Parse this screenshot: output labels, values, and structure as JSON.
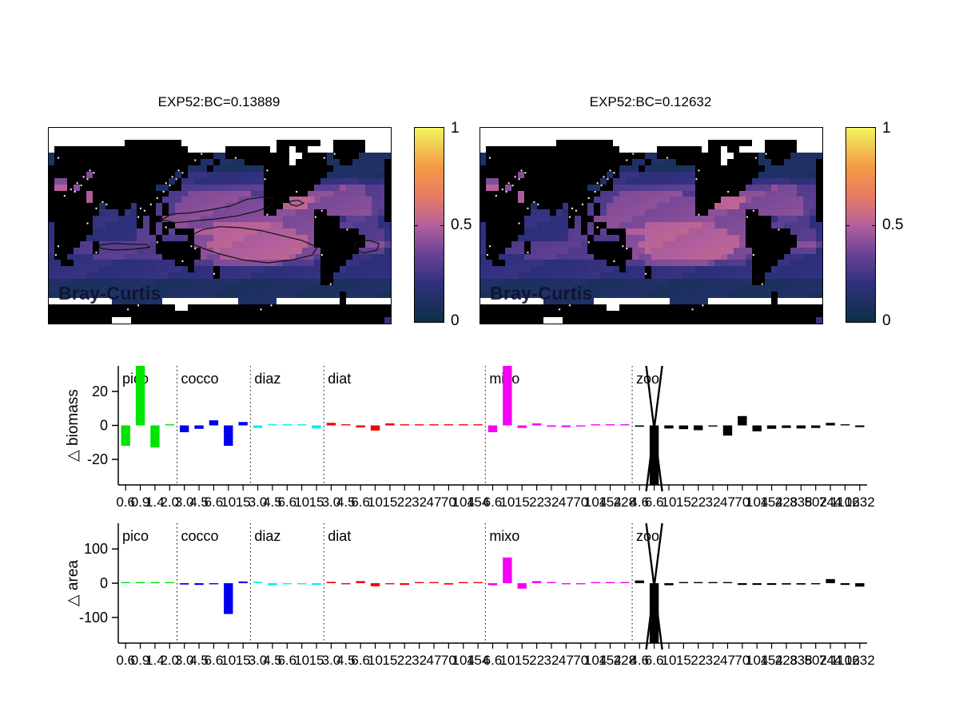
{
  "maps": {
    "left": {
      "title": "EXP52:BC=0.13889",
      "corner_label": "Bray-Curtis",
      "has_contours": true
    },
    "right": {
      "title": "EXP52:BC=0.12632",
      "corner_label": "Bray-Curtis",
      "has_contours": false
    }
  },
  "colorbar": {
    "ticks": [
      "1",
      "0.5",
      "0"
    ],
    "range": [
      0,
      1
    ]
  },
  "colormap_stops": [
    [
      0.0,
      "#0b3145"
    ],
    [
      0.2,
      "#30307e"
    ],
    [
      0.35,
      "#6a4396"
    ],
    [
      0.5,
      "#b5609c"
    ],
    [
      0.65,
      "#e77d63"
    ],
    [
      0.8,
      "#f39a45"
    ],
    [
      1.0,
      "#f2f55f"
    ]
  ],
  "map_grid": {
    "legend": {
      "B": "land(black)",
      "W": "ice/no-data(white)",
      "1-5": "bray-curtis value x10"
    },
    "rows": [
      "WWWWWWWWWWWWWWWWWWWWWWWWWWWWWWWWWWWWWWWWWWWWWWWWWWWWWW",
      "WWWWWWWWWWWWWWWWWWWWWWWWWWWWWWWWWWWWWWWWWWWWWWWWWWWWWW",
      "WWWWWWWWWWWWBBBBBBBBBWWWWWWWWWWWWWWWBBBBBBBWWBBBBBWWWW",
      "WBBBBBBBBBBBBBBBBBBBBBWWWWWWBBBBBBBWBBWBBWWWWBBBBBWWWW",
      "1BBBBBBBBBBBBBBBBBBBBBBBBB11BBBBBBBBBBWWBBBB1BBBB11111",
      "1BBBBBBBBBBBBBBBBBBBBBBB11B1111BBBBBBBWBBBBB11BB11111B",
      "BBBBBBBBBBBBBBBBBBBBBB111B11111111BBBBBBBBBBB11111111B",
      "BBBBBB4BBBBBBBBBBBBB1B222222222222BBBBBBBBBB111111111B",
      "B44BBBBBBBBBBBBBBBB1B2222222222222BBBBBBBBB2222222222B",
      "B55B4BBBBBBBBBBBB11BB3333333333333BBBBBBBB33334444333B",
      "BBBBBB5BBBBBBBBBBBB333444444444433BBBBBBB444444444333B",
      "BBBBBB5BBBBBBBBBBB3334444444444444BBBB555544444444433B",
      "BBBBBBBB1BBBB2BBB3B344444444444444BBB5555444444444433B",
      "BBBBBBBB222B22BBB3B344444444444444BB444444BB444444433B",
      "BBBBBBB2222222B3BB444444444444444444444444BBBB2333332B",
      "2BBBBBB2222222B3B3BB4444445555555555544444BBBB33333322",
      "2BBBBBB222222233B3B3BBB5555555555555555444BBBBBBB33332",
      "2BBBBB22222222333B3333B4445555555555555554BBBBBBBB3332",
      "2BBBB33B333333333BBBBBB4455555555555555554BBBBBBBB4443",
      "2BBB333B333333333BBBBBBB445555555555555544 4BBBBBB33332",
      "2BB222233333333333BBBBBB4445555555555554443BBBBB222222",
      "22BB2222222222222222BBB33344444444444333332BBBB2222222",
      "2222222222222222222222B222B2222222222222222BBB22222222",
      "22222222222222222222222222B2222222222222222BB222222222",
      "1111111111111111111111111111111111111111111BB111111111",
      "111111111111111111111111111111111111111111111111111111",
      "1111111111111111111111111111111111111111111111B1111111",
      "WWWWWWWWWW11111111WWWWWWWWWWWW111111WWWWWWWWWWBWWWWWWW",
      "BBBBBBBBBBBBBBBBBBBBWWBBBBBBBBBBBBBBBBBBBBBBBBBBBBBBBB",
      "BBBBBBBBBBBBBBBBBBBBBBBBBBBBBBBBBBBBBBBBBBBBBBBBBBBBBB",
      "BBBBBBBBBBWWWBBBBBBBBBBBBBBBBBBBBBBBBBBBBBBBBBBBBBBBB"
    ]
  },
  "contours": [
    [
      [
        0.33,
        0.47
      ],
      [
        0.36,
        0.44
      ],
      [
        0.41,
        0.435
      ],
      [
        0.47,
        0.42
      ],
      [
        0.53,
        0.4
      ],
      [
        0.58,
        0.365
      ],
      [
        0.62,
        0.355
      ],
      [
        0.655,
        0.36
      ],
      [
        0.65,
        0.4
      ],
      [
        0.61,
        0.425
      ],
      [
        0.55,
        0.45
      ],
      [
        0.49,
        0.465
      ],
      [
        0.43,
        0.475
      ],
      [
        0.37,
        0.485
      ],
      [
        0.33,
        0.47
      ]
    ],
    [
      [
        0.41,
        0.555
      ],
      [
        0.45,
        0.52
      ],
      [
        0.5,
        0.505
      ],
      [
        0.56,
        0.51
      ],
      [
        0.62,
        0.525
      ],
      [
        0.68,
        0.55
      ],
      [
        0.74,
        0.575
      ],
      [
        0.785,
        0.61
      ],
      [
        0.77,
        0.65
      ],
      [
        0.71,
        0.675
      ],
      [
        0.64,
        0.69
      ],
      [
        0.57,
        0.675
      ],
      [
        0.5,
        0.645
      ],
      [
        0.45,
        0.615
      ],
      [
        0.41,
        0.585
      ],
      [
        0.41,
        0.555
      ]
    ],
    [
      [
        0.145,
        0.6
      ],
      [
        0.19,
        0.59
      ],
      [
        0.24,
        0.595
      ],
      [
        0.285,
        0.595
      ],
      [
        0.295,
        0.61
      ],
      [
        0.25,
        0.62
      ],
      [
        0.19,
        0.625
      ],
      [
        0.15,
        0.615
      ],
      [
        0.145,
        0.6
      ]
    ],
    [
      [
        0.895,
        0.585
      ],
      [
        0.935,
        0.575
      ],
      [
        0.965,
        0.59
      ],
      [
        0.96,
        0.625
      ],
      [
        0.92,
        0.64
      ],
      [
        0.895,
        0.62
      ],
      [
        0.895,
        0.585
      ]
    ],
    [
      [
        0.705,
        0.375
      ],
      [
        0.73,
        0.37
      ],
      [
        0.745,
        0.385
      ],
      [
        0.725,
        0.4
      ],
      [
        0.705,
        0.39
      ],
      [
        0.705,
        0.375
      ]
    ]
  ],
  "chart_data": [
    {
      "type": "bar",
      "name": "delta-biomass",
      "ylabel": "△ biomass",
      "ylim": [
        -35,
        35
      ],
      "yticks": [
        -20,
        0,
        20
      ],
      "groups": [
        {
          "name": "pico",
          "color": "#00e400",
          "sizes": [
            "0.6",
            "0.9",
            "1.4",
            "2.0"
          ],
          "values": [
            -12,
            35,
            -13,
            0.5
          ]
        },
        {
          "name": "cocco",
          "color": "#0000f0",
          "sizes": [
            "3.0",
            "4.5",
            "6.6",
            "10",
            "15"
          ],
          "values": [
            -4,
            -2,
            3,
            -12,
            2
          ]
        },
        {
          "name": "diaz",
          "color": "#00eeee",
          "sizes": [
            "3.0",
            "4.5",
            "6.6",
            "10",
            "15"
          ],
          "values": [
            -1.5,
            0.3,
            0.3,
            0.3,
            -1.8
          ]
        },
        {
          "name": "diat",
          "color": "#f50000",
          "sizes": [
            "3.0",
            "4.5",
            "6.6",
            "10",
            "15",
            "22",
            "32",
            "47",
            "70",
            "104",
            "154"
          ],
          "values": [
            1.5,
            0.3,
            -1.2,
            -3,
            1.2,
            0.3,
            0.2,
            0.2,
            0.2,
            0.2,
            0.2
          ]
        },
        {
          "name": "mixo",
          "color": "#f500f5",
          "sizes": [
            "6.6",
            "10",
            "15",
            "22",
            "32",
            "47",
            "70",
            "104",
            "154",
            "228"
          ],
          "values": [
            -4,
            35,
            -1.5,
            1.2,
            -0.8,
            -1,
            -0.5,
            0.3,
            0.2,
            0.2
          ]
        },
        {
          "name": "zoo",
          "color": "#000000",
          "sizes": [
            "4.6",
            "6.6",
            "10",
            "15",
            "22",
            "32",
            "47",
            "70",
            "104",
            "154",
            "228",
            "338",
            "502",
            "744",
            "1102",
            "1632"
          ],
          "values": [
            -0.8,
            -35,
            -1.8,
            -2.2,
            -2.8,
            -0.3,
            -6,
            5.5,
            -3.5,
            -2,
            -1.5,
            -1.8,
            -1.5,
            1.5,
            0.3,
            -1
          ],
          "offscale_index": 1
        }
      ]
    },
    {
      "type": "bar",
      "name": "delta-area",
      "ylabel": "△ area",
      "ylim": [
        -175,
        175
      ],
      "yticks": [
        -100,
        0,
        100
      ],
      "groups": [
        {
          "name": "pico",
          "color": "#00e400",
          "sizes": [
            "0.6",
            "0.9",
            "1.4",
            "2.0"
          ],
          "values": [
            0.4,
            0.4,
            0.4,
            0.4
          ]
        },
        {
          "name": "cocco",
          "color": "#0000f0",
          "sizes": [
            "3.0",
            "4.5",
            "6.6",
            "10",
            "15"
          ],
          "values": [
            -4,
            -5,
            -1,
            -90,
            5
          ]
        },
        {
          "name": "diaz",
          "color": "#00eeee",
          "sizes": [
            "3.0",
            "4.5",
            "6.6",
            "10",
            "15"
          ],
          "values": [
            4,
            -6,
            -1.5,
            -1,
            -5
          ]
        },
        {
          "name": "diat",
          "color": "#f50000",
          "sizes": [
            "3.0",
            "4.5",
            "6.6",
            "10",
            "15",
            "22",
            "32",
            "47",
            "70",
            "104",
            "154"
          ],
          "values": [
            4,
            -1,
            6,
            -9,
            -1,
            -5,
            0.5,
            0.5,
            -4,
            0.5,
            0.5
          ]
        },
        {
          "name": "mixo",
          "color": "#f500f5",
          "sizes": [
            "6.6",
            "10",
            "15",
            "22",
            "32",
            "47",
            "70",
            "104",
            "154",
            "228"
          ],
          "values": [
            -6,
            75,
            -16,
            6,
            0.5,
            -2,
            -2,
            0.5,
            0.5,
            0.5
          ]
        },
        {
          "name": "zoo",
          "color": "#000000",
          "sizes": [
            "4.6",
            "6.6",
            "10",
            "15",
            "22",
            "32",
            "47",
            "70",
            "104",
            "154",
            "228",
            "338",
            "502",
            "744",
            "1102",
            "1632"
          ],
          "values": [
            8,
            -175,
            -6,
            0.5,
            0.5,
            0.5,
            0.5,
            -5,
            -5,
            -5,
            -4,
            -4,
            -3,
            12,
            -5,
            -10
          ],
          "offscale_index": 1
        }
      ]
    }
  ]
}
